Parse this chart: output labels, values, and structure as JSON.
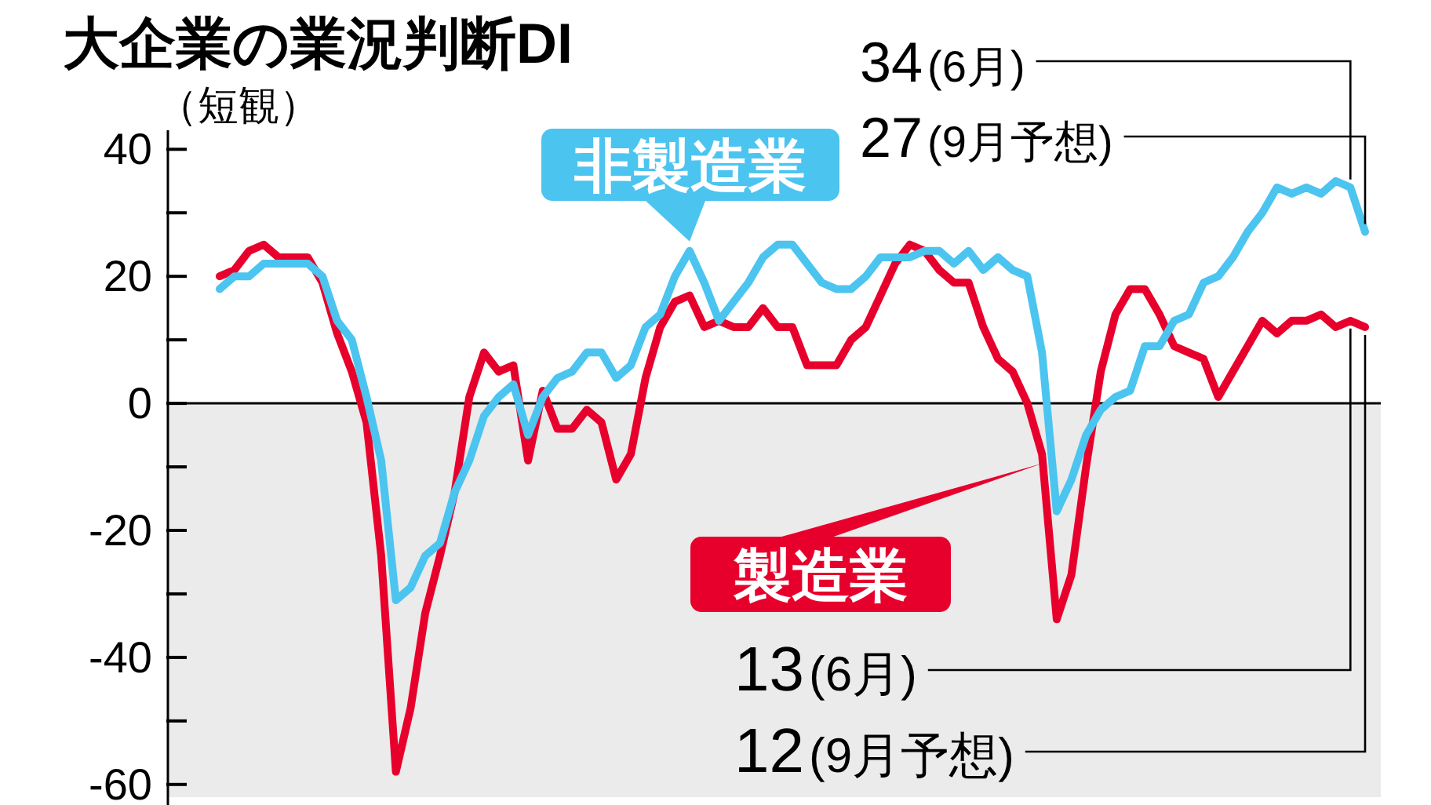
{
  "chart_data": {
    "type": "line",
    "title": "大企業の業況判断DI",
    "subtitle": "（短観）",
    "categories": [
      null,
      null,
      null,
      null,
      null,
      null,
      null,
      null,
      null,
      null,
      null,
      null,
      null,
      null,
      null,
      null,
      null,
      null,
      null,
      null,
      null,
      null,
      null,
      null,
      null,
      null,
      null,
      null,
      null,
      null,
      null,
      null,
      null,
      null,
      null,
      null,
      null,
      null,
      null,
      null,
      null,
      null,
      null,
      null,
      null,
      null,
      null,
      null,
      null,
      null,
      null,
      null,
      null,
      null,
      null,
      null,
      null,
      null,
      null,
      null,
      null,
      null,
      null,
      null,
      null,
      null,
      null,
      null,
      null,
      null,
      null,
      null,
      null,
      null,
      null,
      null,
      null,
      null,
      null
    ],
    "series": [
      {
        "name": "製造業",
        "color": "#e8002d",
        "values": [
          20,
          21,
          24,
          25,
          23,
          23,
          23,
          19,
          11,
          5,
          -3,
          -24,
          -58,
          -48,
          -33,
          -24,
          -14,
          1,
          8,
          5,
          6,
          -9,
          2,
          -4,
          -4,
          -1,
          -3,
          -12,
          -8,
          4,
          12,
          16,
          17,
          12,
          13,
          12,
          12,
          15,
          12,
          12,
          6,
          6,
          6,
          10,
          12,
          17,
          22,
          25,
          24,
          21,
          19,
          19,
          12,
          7,
          5,
          0,
          -8,
          -34,
          -27,
          -10,
          5,
          14,
          18,
          18,
          14,
          9,
          8,
          7,
          1,
          5,
          9,
          13,
          11,
          13,
          13,
          14,
          12,
          13,
          12
        ]
      },
      {
        "name": "非製造業",
        "color": "#4cc4f0",
        "values": [
          18,
          20,
          20,
          22,
          22,
          22,
          22,
          20,
          13,
          10,
          1,
          -9,
          -31,
          -29,
          -24,
          -22,
          -14,
          -9,
          -2,
          1,
          3,
          -5,
          1,
          4,
          5,
          8,
          8,
          4,
          6,
          12,
          14,
          20,
          24,
          19,
          13,
          16,
          19,
          23,
          25,
          25,
          22,
          19,
          18,
          18,
          20,
          23,
          23,
          23,
          24,
          24,
          22,
          24,
          21,
          23,
          21,
          20,
          8,
          -17,
          -12,
          -5,
          -1,
          1,
          2,
          9,
          9,
          13,
          14,
          19,
          20,
          23,
          27,
          30,
          34,
          33,
          34,
          33,
          35,
          34,
          27
        ]
      }
    ],
    "ylim": [
      -62,
      43
    ],
    "yticks": [
      40,
      20,
      0,
      -20,
      -40,
      -60
    ],
    "bands": [
      {
        "axis": "y",
        "from": -62,
        "to": 0,
        "color": "#ebebeb"
      }
    ],
    "ref_lines": [
      {
        "axis": "y",
        "value": 0,
        "color": "#000000"
      }
    ],
    "annotations": [
      "34(6月)",
      "27(9月予想)",
      "13(6月)",
      "12(9月予想)"
    ],
    "grid": false,
    "marker": "none",
    "line_style": "solid",
    "tick_labels": "y"
  }
}
